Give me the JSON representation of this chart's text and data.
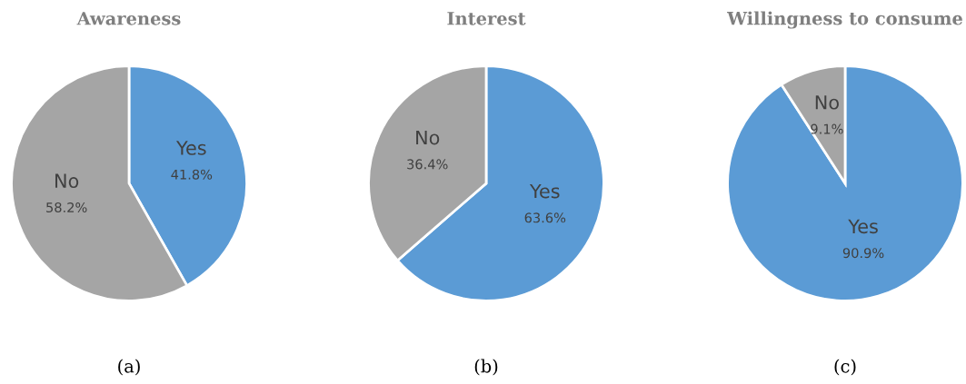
{
  "chart_data": [
    {
      "type": "pie",
      "title": "Awareness",
      "categories": [
        "Yes",
        "No"
      ],
      "values": [
        41.8,
        58.2
      ],
      "colors": [
        "#5b9bd5",
        "#a5a5a5"
      ],
      "value_labels": [
        "41.8%",
        "58.2%"
      ],
      "annotations": [
        "(a)"
      ]
    },
    {
      "type": "pie",
      "title": "Interest",
      "categories": [
        "Yes",
        "No"
      ],
      "values": [
        63.6,
        36.4
      ],
      "colors": [
        "#5b9bd5",
        "#a5a5a5"
      ],
      "value_labels": [
        "63.6%",
        "36.4%"
      ],
      "annotations": [
        "(b)"
      ]
    },
    {
      "type": "pie",
      "title": "Willingness to consume",
      "categories": [
        "Yes",
        "No"
      ],
      "values": [
        90.9,
        9.1
      ],
      "colors": [
        "#5b9bd5",
        "#a5a5a5"
      ],
      "value_labels": [
        "90.9%",
        "9.1%"
      ],
      "annotations": [
        "(c)"
      ]
    }
  ]
}
